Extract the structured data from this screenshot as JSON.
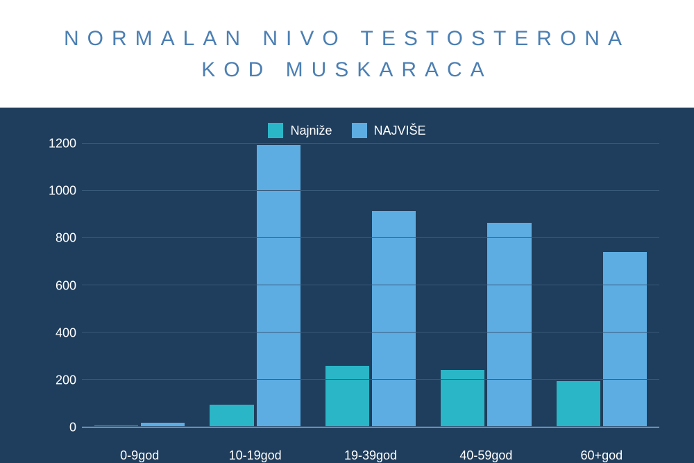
{
  "title": "NORMALAN NIVO TESTOSTERONA KOD MUSKARACA",
  "chart": {
    "type": "bar",
    "background_color": "#1f3d5c",
    "axis_text_color": "#ffffff",
    "gridline_color": "#3a5a7a",
    "ylim": [
      0,
      1200
    ],
    "ytick_step": 200,
    "yticks": [
      0,
      200,
      400,
      600,
      800,
      1000,
      1200
    ],
    "categories": [
      "0-9god",
      "10-19god",
      "19-39god",
      "40-59god",
      "60+god"
    ],
    "series": [
      {
        "name": "Najniže",
        "color": "#2ab6c7",
        "values": [
          5,
          95,
          260,
          240,
          195
        ]
      },
      {
        "name": "NAJVIŠE",
        "color": "#5dade2",
        "values": [
          18,
          1195,
          915,
          865,
          740
        ]
      }
    ],
    "title_color": "#4b7fb3",
    "title_fontsize": 30,
    "title_letter_spacing": 12,
    "label_fontsize": 18,
    "bar_width_ratio": 0.38
  }
}
